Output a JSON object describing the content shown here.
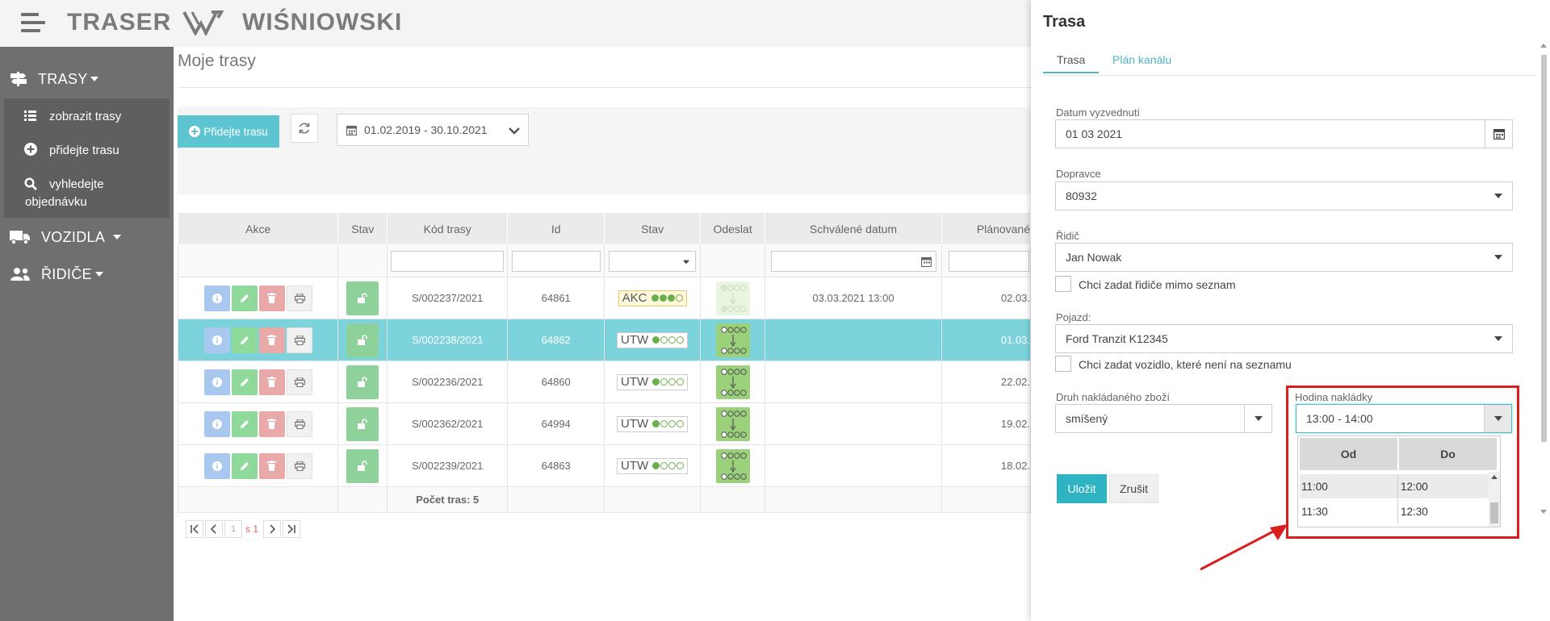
{
  "app": {
    "brand": "TRASER",
    "company": "WIŚNIOWSKI"
  },
  "sidebar": {
    "groups": [
      {
        "label": "TRASY",
        "icon": "signpost-icon"
      },
      {
        "label": "VOZIDLA",
        "icon": "truck-icon"
      },
      {
        "label": "ŘIDIČE",
        "icon": "users-icon"
      }
    ],
    "submenu": [
      {
        "label": "zobrazit trasy",
        "icon": "list-icon"
      },
      {
        "label": "přidejte trasu",
        "icon": "plus-circle-icon"
      },
      {
        "label": "vyhledejte",
        "label2": "objednávku",
        "icon": "search-icon"
      }
    ]
  },
  "main": {
    "title": "Moje trasy",
    "add_button": "Přidejte trasu",
    "date_range": "01.02.2019 - 30.10.2021",
    "columns": [
      "Akce",
      "Stav",
      "Kód trasy",
      "Id",
      "Stav",
      "Odeslat",
      "Schválené datum",
      "Plánované"
    ],
    "rows": [
      {
        "code": "S/002237/2021",
        "id": "64861",
        "status": "AKC",
        "status_level": 3,
        "approved": "03.03.2021 13:00",
        "planned": "02.03.",
        "selected": false,
        "send_faded": true
      },
      {
        "code": "S/002238/2021",
        "id": "64862",
        "status": "UTW",
        "status_level": 1,
        "approved": "",
        "planned": "01.03.",
        "selected": true,
        "send_faded": false
      },
      {
        "code": "S/002236/2021",
        "id": "64860",
        "status": "UTW",
        "status_level": 1,
        "approved": "",
        "planned": "22.02.",
        "selected": false,
        "send_faded": false
      },
      {
        "code": "S/002362/2021",
        "id": "64994",
        "status": "UTW",
        "status_level": 1,
        "approved": "",
        "planned": "19.02.",
        "selected": false,
        "send_faded": false
      },
      {
        "code": "S/002239/2021",
        "id": "64863",
        "status": "UTW",
        "status_level": 1,
        "approved": "",
        "planned": "18.02.",
        "selected": false,
        "send_faded": false
      }
    ],
    "footer_count": "Počet tras: 5",
    "pager": {
      "page": "1",
      "of": "s 1"
    }
  },
  "panel": {
    "title": "Trasa",
    "tabs": [
      "Trasa",
      "Plán kanálu"
    ],
    "pickup_date_label": "Datum vyzvednutí",
    "pickup_date": "01 03 2021",
    "carrier_label": "Dopravce",
    "carrier": "80932",
    "driver_label": "Řidič",
    "driver": "Jan Nowak",
    "driver_custom_label": "Chci zadat řidiče mimo seznam",
    "vehicle_label": "Pojazd:",
    "vehicle": "Ford Tranzit K12345",
    "vehicle_custom_label": "Chci zadat vozidlo, které není na seznamu",
    "goods_label": "Druh nakládaného zboží",
    "goods": "smíšený",
    "loading_hour_label": "Hodina nakládky",
    "loading_hour": "13:00 - 14:00",
    "dropdown_headers": [
      "Od",
      "Do"
    ],
    "dropdown_rows": [
      {
        "from": "11:00",
        "to": "12:00"
      },
      {
        "from": "11:30",
        "to": "12:30"
      }
    ],
    "save": "Uložit",
    "cancel": "Zrušit"
  }
}
